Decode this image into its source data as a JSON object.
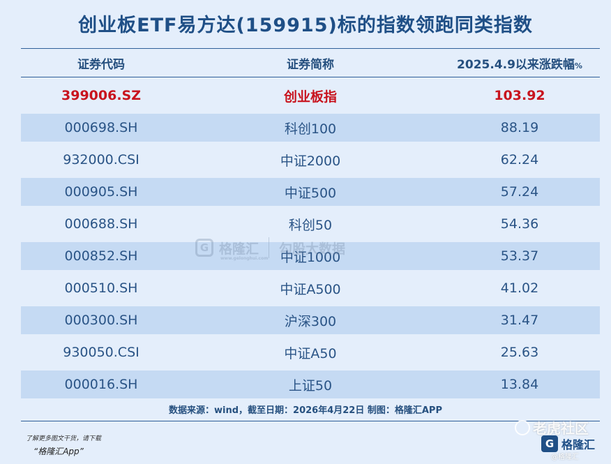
{
  "title": "创业板ETF易方达(159915)标的指数领跑同类指数",
  "chart_data": {
    "type": "table",
    "columns": [
      "证券代码",
      "证券简称",
      "2025.4.9以来涨跌幅"
    ],
    "col3_unit": "%",
    "rows": [
      {
        "code": "399006.SZ",
        "name": "创业板指",
        "value": "103.92",
        "highlight": true
      },
      {
        "code": "000698.SH",
        "name": "科创100",
        "value": "88.19"
      },
      {
        "code": "932000.CSI",
        "name": "中证2000",
        "value": "62.24"
      },
      {
        "code": "000905.SH",
        "name": "中证500",
        "value": "57.24"
      },
      {
        "code": "000688.SH",
        "name": "科创50",
        "value": "54.36"
      },
      {
        "code": "000852.SH",
        "name": "中证1000",
        "value": "53.37"
      },
      {
        "code": "000510.SH",
        "name": "中证A500",
        "value": "41.02"
      },
      {
        "code": "000300.SH",
        "name": "沪深300",
        "value": "31.47"
      },
      {
        "code": "930050.CSI",
        "name": "中证A50",
        "value": "25.63"
      },
      {
        "code": "000016.SH",
        "name": "上证50",
        "value": "13.84"
      }
    ],
    "highlight_color": "#c8141e",
    "stripe_color": "#c5daf3"
  },
  "source": "数据来源：wind，截至日期：2026年4月22日 制图：格隆汇APP",
  "promo_line1": "了解更多图文干货，请下载",
  "promo_line2": "“格隆汇App”",
  "watermark": {
    "logo_letter": "G",
    "brand": "格隆汇",
    "site": "www.gelonghui.com",
    "tagline": "勾股大数据"
  },
  "tiger_watermark": "老虎社区",
  "brand_logo": {
    "letter": "G",
    "name": "格隆汇"
  },
  "handle": "@格隆汇"
}
